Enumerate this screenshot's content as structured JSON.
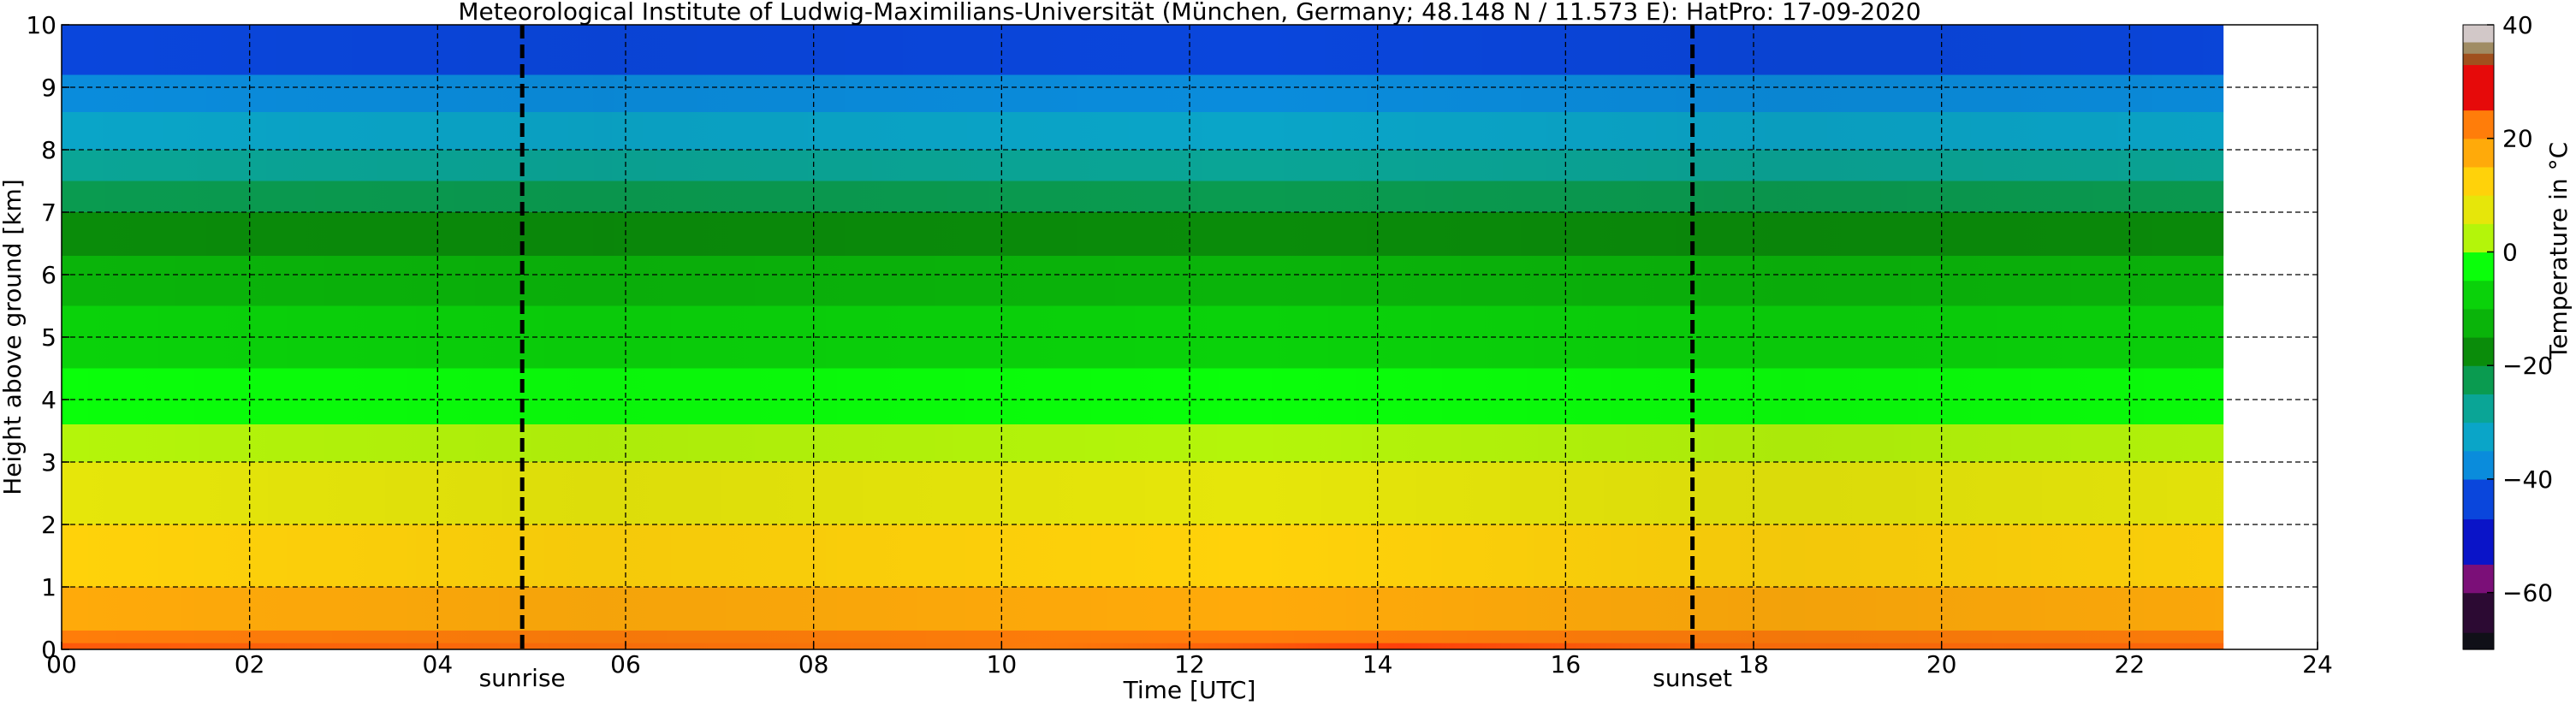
{
  "chart_data": {
    "type": "heatmap",
    "title": "Meteorological Institute of Ludwig-Maximilians-Universität (München, Germany; 48.148 N / 11.573 E):    HatPro: 17-09-2020",
    "xlabel": "Time [UTC]",
    "ylabel": "Height above ground [km]",
    "xlim": [
      0,
      24
    ],
    "ylim": [
      0,
      10
    ],
    "data_extent_x": [
      0,
      23
    ],
    "x_ticks": [
      "00",
      "02",
      "04",
      "06",
      "08",
      "10",
      "12",
      "14",
      "16",
      "18",
      "20",
      "22",
      "24"
    ],
    "y_ticks": [
      "0",
      "1",
      "2",
      "3",
      "4",
      "5",
      "6",
      "7",
      "8",
      "9",
      "10"
    ],
    "grid": true,
    "markers": [
      {
        "label": "sunrise",
        "x": 4.9
      },
      {
        "label": "sunset",
        "x": 17.35
      }
    ],
    "colorbar": {
      "label": "Temperature in °C",
      "range": [
        -70,
        40
      ],
      "ticks": [
        "40",
        "20",
        "0",
        "−20",
        "−40",
        "−60"
      ],
      "tick_values": [
        40,
        20,
        0,
        -20,
        -40,
        -60
      ],
      "colors": [
        {
          "from": -70,
          "to": -67,
          "color": "#101018"
        },
        {
          "from": -67,
          "to": -60,
          "color": "#2c0a33"
        },
        {
          "from": -60,
          "to": -55,
          "color": "#7b0f78"
        },
        {
          "from": -55,
          "to": -47,
          "color": "#0a14c8"
        },
        {
          "from": -47,
          "to": -40,
          "color": "#0a46dc"
        },
        {
          "from": -40,
          "to": -35,
          "color": "#0a8cdc"
        },
        {
          "from": -35,
          "to": -30,
          "color": "#0aa5c8"
        },
        {
          "from": -30,
          "to": -25,
          "color": "#0aa596"
        },
        {
          "from": -25,
          "to": -20,
          "color": "#0a9b50"
        },
        {
          "from": -20,
          "to": -15,
          "color": "#0a8c0a"
        },
        {
          "from": -15,
          "to": -10,
          "color": "#0ab40a"
        },
        {
          "from": -10,
          "to": -5,
          "color": "#0ad20a"
        },
        {
          "from": -5,
          "to": 0,
          "color": "#0aff0a"
        },
        {
          "from": 0,
          "to": 5,
          "color": "#b4f50a"
        },
        {
          "from": 5,
          "to": 10,
          "color": "#e6e60a"
        },
        {
          "from": 10,
          "to": 15,
          "color": "#ffd20a"
        },
        {
          "from": 15,
          "to": 20,
          "color": "#ffaa0a"
        },
        {
          "from": 20,
          "to": 25,
          "color": "#ff7d0a"
        },
        {
          "from": 25,
          "to": 33,
          "color": "#e60a0a"
        },
        {
          "from": 33,
          "to": 35,
          "color": "#a0501e"
        },
        {
          "from": 35,
          "to": 37,
          "color": "#a08c64"
        },
        {
          "from": 37,
          "to": 40,
          "color": "#d2c8c8"
        }
      ]
    },
    "profile": {
      "heights_km": [
        0,
        0.3,
        1,
        2,
        3,
        3.6,
        4.5,
        5.5,
        6.3,
        7,
        7.5,
        8,
        8.6,
        9.2,
        9.6,
        10
      ],
      "temperature_c": [
        21,
        17,
        13,
        8,
        3,
        -3,
        -8,
        -13,
        -19,
        -22,
        -28,
        -33,
        -37,
        -41,
        -46,
        -52
      ]
    }
  }
}
